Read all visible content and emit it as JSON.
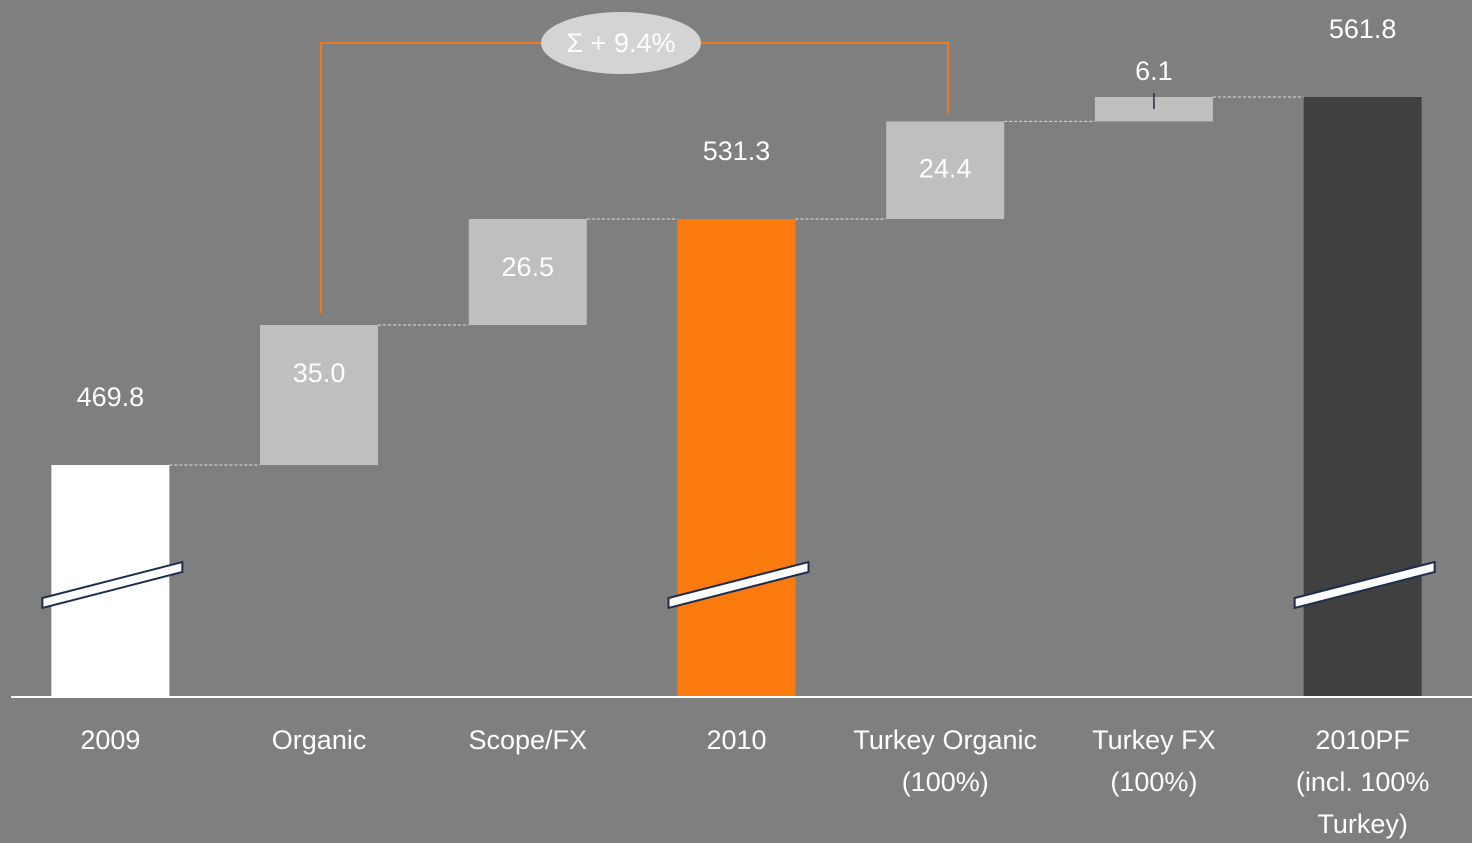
{
  "chart_data": {
    "type": "waterfall",
    "categories": [
      [
        "2009"
      ],
      [
        "Organic"
      ],
      [
        "Scope/FX"
      ],
      [
        "2010"
      ],
      [
        "Turkey Organic",
        "(100%)"
      ],
      [
        "Turkey FX",
        "(100%)"
      ],
      [
        "2010PF",
        "(incl. 100%",
        "Turkey)"
      ]
    ],
    "values": [
      469.8,
      35.0,
      26.5,
      531.3,
      24.4,
      6.1,
      561.8
    ],
    "value_labels": [
      "469.8",
      "35.0",
      "26.5",
      "531.3",
      "24.4",
      "6.1",
      "561.8"
    ],
    "totals": [
      true,
      false,
      false,
      true,
      false,
      false,
      true
    ],
    "colors": [
      "#ffffff",
      "#bfbfbf",
      "#bfbfbf",
      "#fc7b0e",
      "#bfbfbf",
      "#bfbfbf",
      "#404040"
    ],
    "annotation": "Σ + 9.4%"
  }
}
